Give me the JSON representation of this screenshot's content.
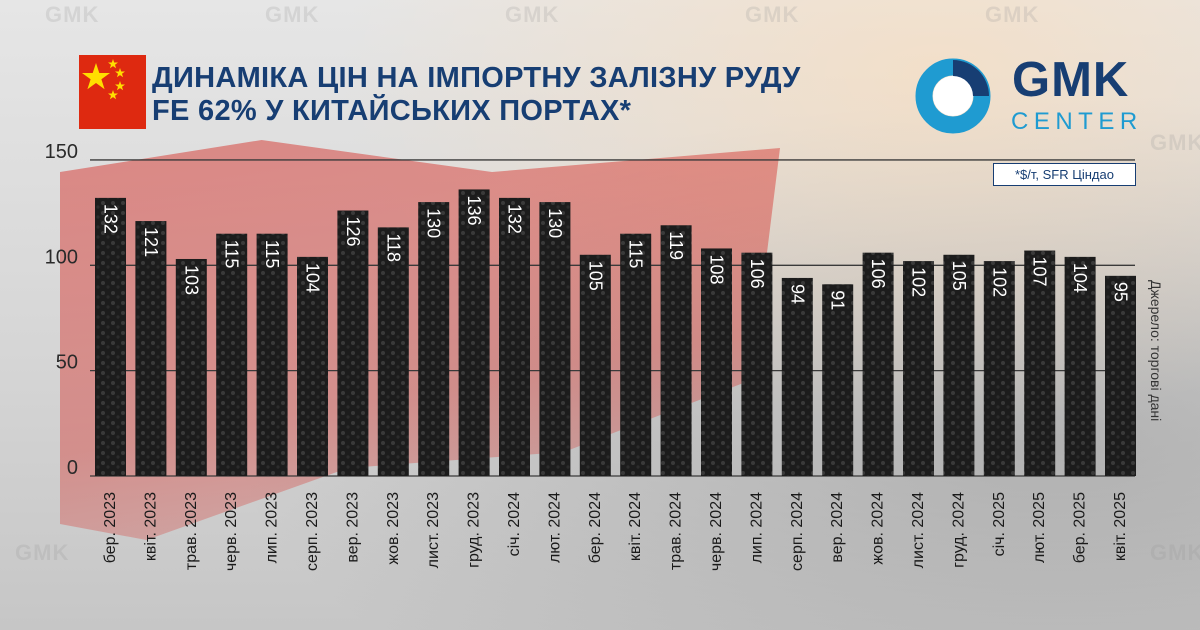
{
  "header": {
    "title_line1": "ДИНАМІКА ЦІН НА ІМПОРТНУ ЗАЛІЗНУ РУДУ",
    "title_line2": "FE 62% У КИТАЙСЬКИХ ПОРТАХ*"
  },
  "logo": {
    "line1": "GMK",
    "line2": "CENTER"
  },
  "watermark_text": "GMK",
  "unit_note": "*$/т,  SFR Ціндао",
  "source_note": "Джерело: торгові дані",
  "colors": {
    "title": "#173e73",
    "accent": "#1f9bd1",
    "bar": "#1c1c1c",
    "flag_red": "#de2910",
    "star": "#ffde00"
  },
  "chart_data": {
    "type": "bar",
    "categories": [
      "бер. 2023",
      "квіт. 2023",
      "трав. 2023",
      "черв. 2023",
      "лип. 2023",
      "серп. 2023",
      "вер. 2023",
      "жов. 2023",
      "лист. 2023",
      "груд. 2023",
      "січ. 2024",
      "лют. 2024",
      "бер. 2024",
      "квіт. 2024",
      "трав. 2024",
      "черв. 2024",
      "лип. 2024",
      "серп. 2024",
      "вер. 2024",
      "жов. 2024",
      "лист. 2024",
      "груд. 2024",
      "січ. 2025",
      "лют. 2025",
      "бер. 2025",
      "квіт. 2025"
    ],
    "values": [
      132,
      121,
      103,
      115,
      115,
      104,
      126,
      118,
      130,
      136,
      132,
      130,
      105,
      115,
      119,
      108,
      106,
      94,
      91,
      106,
      102,
      105,
      102,
      107,
      104,
      95
    ],
    "y_ticks": [
      0,
      50,
      100,
      150
    ],
    "ylim": [
      0,
      150
    ],
    "grid": true,
    "title": "",
    "xlabel": "",
    "ylabel": ""
  }
}
